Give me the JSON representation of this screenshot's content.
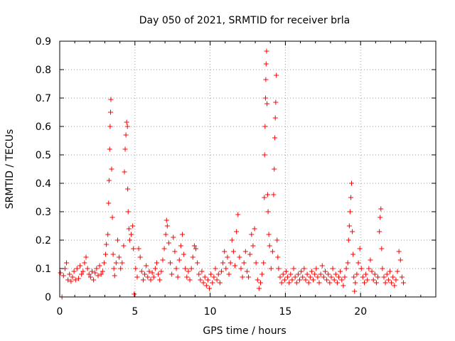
{
  "chart_data": {
    "type": "scatter",
    "title": "Day 050 of 2021, SRMTID for receiver brla",
    "xlabel": "GPS time / hours",
    "ylabel": "SRMTID / TECUs",
    "xlim": [
      0,
      25
    ],
    "ylim": [
      0,
      0.9
    ],
    "xticks": [
      "0",
      "5",
      "10",
      "15",
      "20"
    ],
    "yticks": [
      "0",
      "0.1",
      "0.2",
      "0.3",
      "0.4",
      "0.5",
      "0.6",
      "0.7",
      "0.8",
      "0.9"
    ],
    "grid": true,
    "marker": "+",
    "color": "#ff0000",
    "series": [
      {
        "name": "SRMTID",
        "points": [
          [
            0.05,
            0.085
          ],
          [
            0.15,
            0.0
          ],
          [
            0.25,
            0.075
          ],
          [
            0.35,
            0.1
          ],
          [
            0.45,
            0.12
          ],
          [
            0.55,
            0.06
          ],
          [
            0.65,
            0.08
          ],
          [
            0.75,
            0.055
          ],
          [
            0.85,
            0.07
          ],
          [
            0.95,
            0.09
          ],
          [
            1.05,
            0.06
          ],
          [
            1.15,
            0.1
          ],
          [
            1.25,
            0.065
          ],
          [
            1.35,
            0.11
          ],
          [
            1.45,
            0.08
          ],
          [
            1.55,
            0.09
          ],
          [
            1.65,
            0.12
          ],
          [
            1.75,
            0.14
          ],
          [
            1.85,
            0.1
          ],
          [
            1.95,
            0.08
          ],
          [
            2.05,
            0.07
          ],
          [
            2.15,
            0.09
          ],
          [
            2.25,
            0.06
          ],
          [
            2.35,
            0.085
          ],
          [
            2.45,
            0.1
          ],
          [
            2.55,
            0.075
          ],
          [
            2.65,
            0.11
          ],
          [
            2.75,
            0.08
          ],
          [
            2.85,
            0.09
          ],
          [
            2.95,
            0.12
          ],
          [
            3.05,
            0.15
          ],
          [
            3.1,
            0.185
          ],
          [
            3.2,
            0.22
          ],
          [
            3.25,
            0.33
          ],
          [
            3.28,
            0.41
          ],
          [
            3.32,
            0.52
          ],
          [
            3.35,
            0.6
          ],
          [
            3.38,
            0.65
          ],
          [
            3.4,
            0.695
          ],
          [
            3.45,
            0.45
          ],
          [
            3.5,
            0.28
          ],
          [
            3.55,
            0.15
          ],
          [
            3.6,
            0.1
          ],
          [
            3.65,
            0.075
          ],
          [
            3.75,
            0.12
          ],
          [
            3.85,
            0.2
          ],
          [
            3.95,
            0.14
          ],
          [
            4.05,
            0.1
          ],
          [
            4.15,
            0.12
          ],
          [
            4.25,
            0.18
          ],
          [
            4.3,
            0.44
          ],
          [
            4.35,
            0.52
          ],
          [
            4.4,
            0.57
          ],
          [
            4.45,
            0.615
          ],
          [
            4.5,
            0.6
          ],
          [
            4.52,
            0.38
          ],
          [
            4.55,
            0.3
          ],
          [
            4.6,
            0.24
          ],
          [
            4.65,
            0.2
          ],
          [
            4.75,
            0.22
          ],
          [
            4.85,
            0.25
          ],
          [
            4.9,
            0.17
          ],
          [
            4.95,
            0.01
          ],
          [
            5.05,
            0.1
          ],
          [
            5.15,
            0.07
          ],
          [
            5.25,
            0.17
          ],
          [
            5.35,
            0.14
          ],
          [
            5.45,
            0.09
          ],
          [
            5.55,
            0.06
          ],
          [
            5.65,
            0.08
          ],
          [
            5.75,
            0.11
          ],
          [
            5.85,
            0.07
          ],
          [
            5.95,
            0.09
          ],
          [
            6.05,
            0.06
          ],
          [
            6.15,
            0.085
          ],
          [
            6.25,
            0.07
          ],
          [
            6.35,
            0.1
          ],
          [
            6.45,
            0.12
          ],
          [
            6.55,
            0.08
          ],
          [
            6.65,
            0.06
          ],
          [
            6.75,
            0.09
          ],
          [
            6.85,
            0.13
          ],
          [
            6.95,
            0.17
          ],
          [
            7.05,
            0.22
          ],
          [
            7.1,
            0.27
          ],
          [
            7.15,
            0.25
          ],
          [
            7.25,
            0.19
          ],
          [
            7.35,
            0.12
          ],
          [
            7.45,
            0.08
          ],
          [
            7.55,
            0.21
          ],
          [
            7.65,
            0.16
          ],
          [
            7.75,
            0.1
          ],
          [
            7.85,
            0.07
          ],
          [
            7.95,
            0.13
          ],
          [
            8.05,
            0.18
          ],
          [
            8.15,
            0.22
          ],
          [
            8.25,
            0.15
          ],
          [
            8.35,
            0.1
          ],
          [
            8.45,
            0.07
          ],
          [
            8.55,
            0.09
          ],
          [
            8.65,
            0.06
          ],
          [
            8.75,
            0.1
          ],
          [
            8.85,
            0.14
          ],
          [
            8.95,
            0.18
          ],
          [
            9.05,
            0.17
          ],
          [
            9.15,
            0.12
          ],
          [
            9.25,
            0.08
          ],
          [
            9.35,
            0.06
          ],
          [
            9.45,
            0.09
          ],
          [
            9.55,
            0.05
          ],
          [
            9.65,
            0.07
          ],
          [
            9.75,
            0.04
          ],
          [
            9.85,
            0.06
          ],
          [
            9.95,
            0.03
          ],
          [
            10.05,
            0.08
          ],
          [
            10.15,
            0.05
          ],
          [
            10.25,
            0.07
          ],
          [
            10.35,
            0.1
          ],
          [
            10.45,
            0.06
          ],
          [
            10.55,
            0.08
          ],
          [
            10.65,
            0.05
          ],
          [
            10.75,
            0.09
          ],
          [
            10.85,
            0.12
          ],
          [
            10.95,
            0.16
          ],
          [
            11.05,
            0.1
          ],
          [
            11.15,
            0.14
          ],
          [
            11.25,
            0.08
          ],
          [
            11.35,
            0.12
          ],
          [
            11.45,
            0.2
          ],
          [
            11.55,
            0.16
          ],
          [
            11.65,
            0.11
          ],
          [
            11.75,
            0.23
          ],
          [
            11.85,
            0.29
          ],
          [
            11.95,
            0.14
          ],
          [
            12.05,
            0.1
          ],
          [
            12.15,
            0.07
          ],
          [
            12.25,
            0.12
          ],
          [
            12.35,
            0.16
          ],
          [
            12.45,
            0.09
          ],
          [
            12.55,
            0.07
          ],
          [
            12.65,
            0.15
          ],
          [
            12.75,
            0.22
          ],
          [
            12.85,
            0.18
          ],
          [
            12.95,
            0.24
          ],
          [
            13.05,
            0.12
          ],
          [
            13.15,
            0.06
          ],
          [
            13.25,
            0.03
          ],
          [
            13.35,
            0.05
          ],
          [
            13.45,
            0.08
          ],
          [
            13.55,
            0.12
          ],
          [
            13.6,
            0.35
          ],
          [
            13.62,
            0.5
          ],
          [
            13.65,
            0.6
          ],
          [
            13.68,
            0.7
          ],
          [
            13.7,
            0.765
          ],
          [
            13.72,
            0.82
          ],
          [
            13.75,
            0.865
          ],
          [
            13.78,
            0.68
          ],
          [
            13.82,
            0.36
          ],
          [
            13.85,
            0.3
          ],
          [
            13.9,
            0.22
          ],
          [
            13.95,
            0.18
          ],
          [
            14.05,
            0.1
          ],
          [
            14.15,
            0.16
          ],
          [
            14.22,
            0.36
          ],
          [
            14.26,
            0.45
          ],
          [
            14.3,
            0.56
          ],
          [
            14.33,
            0.63
          ],
          [
            14.36,
            0.685
          ],
          [
            14.4,
            0.78
          ],
          [
            14.45,
            0.2
          ],
          [
            14.5,
            0.14
          ],
          [
            14.55,
            0.1
          ],
          [
            14.65,
            0.07
          ],
          [
            14.75,
            0.05
          ],
          [
            14.85,
            0.08
          ],
          [
            14.95,
            0.06
          ],
          [
            15.05,
            0.09
          ],
          [
            15.15,
            0.07
          ],
          [
            15.25,
            0.05
          ],
          [
            15.35,
            0.08
          ],
          [
            15.45,
            0.06
          ],
          [
            15.55,
            0.1
          ],
          [
            15.65,
            0.07
          ],
          [
            15.75,
            0.05
          ],
          [
            15.85,
            0.08
          ],
          [
            15.95,
            0.06
          ],
          [
            16.05,
            0.09
          ],
          [
            16.15,
            0.07
          ],
          [
            16.25,
            0.1
          ],
          [
            16.35,
            0.06
          ],
          [
            16.45,
            0.08
          ],
          [
            16.55,
            0.05
          ],
          [
            16.65,
            0.07
          ],
          [
            16.75,
            0.09
          ],
          [
            16.85,
            0.06
          ],
          [
            16.95,
            0.08
          ],
          [
            17.05,
            0.1
          ],
          [
            17.15,
            0.07
          ],
          [
            17.25,
            0.05
          ],
          [
            17.35,
            0.08
          ],
          [
            17.45,
            0.11
          ],
          [
            17.55,
            0.07
          ],
          [
            17.65,
            0.09
          ],
          [
            17.75,
            0.06
          ],
          [
            17.85,
            0.08
          ],
          [
            17.95,
            0.05
          ],
          [
            18.05,
            0.07
          ],
          [
            18.15,
            0.1
          ],
          [
            18.25,
            0.06
          ],
          [
            18.35,
            0.08
          ],
          [
            18.45,
            0.05
          ],
          [
            18.55,
            0.07
          ],
          [
            18.65,
            0.09
          ],
          [
            18.75,
            0.06
          ],
          [
            18.85,
            0.04
          ],
          [
            18.95,
            0.07
          ],
          [
            19.05,
            0.1
          ],
          [
            19.15,
            0.12
          ],
          [
            19.2,
            0.2
          ],
          [
            19.25,
            0.25
          ],
          [
            19.3,
            0.3
          ],
          [
            19.35,
            0.35
          ],
          [
            19.4,
            0.4
          ],
          [
            19.45,
            0.23
          ],
          [
            19.5,
            0.15
          ],
          [
            19.55,
            0.07
          ],
          [
            19.6,
            0.02
          ],
          [
            19.65,
            0.05
          ],
          [
            19.75,
            0.08
          ],
          [
            19.85,
            0.12
          ],
          [
            19.95,
            0.17
          ],
          [
            20.05,
            0.1
          ],
          [
            20.15,
            0.07
          ],
          [
            20.25,
            0.05
          ],
          [
            20.35,
            0.08
          ],
          [
            20.45,
            0.06
          ],
          [
            20.55,
            0.1
          ],
          [
            20.65,
            0.13
          ],
          [
            20.75,
            0.09
          ],
          [
            20.85,
            0.06
          ],
          [
            20.95,
            0.08
          ],
          [
            21.05,
            0.05
          ],
          [
            21.15,
            0.07
          ],
          [
            21.25,
            0.23
          ],
          [
            21.3,
            0.28
          ],
          [
            21.35,
            0.31
          ],
          [
            21.4,
            0.17
          ],
          [
            21.45,
            0.1
          ],
          [
            21.55,
            0.07
          ],
          [
            21.65,
            0.05
          ],
          [
            21.75,
            0.08
          ],
          [
            21.85,
            0.06
          ],
          [
            21.95,
            0.09
          ],
          [
            22.05,
            0.05
          ],
          [
            22.15,
            0.07
          ],
          [
            22.25,
            0.04
          ],
          [
            22.35,
            0.06
          ],
          [
            22.45,
            0.09
          ],
          [
            22.55,
            0.16
          ],
          [
            22.65,
            0.13
          ],
          [
            22.75,
            0.07
          ],
          [
            22.85,
            0.05
          ]
        ]
      }
    ]
  }
}
